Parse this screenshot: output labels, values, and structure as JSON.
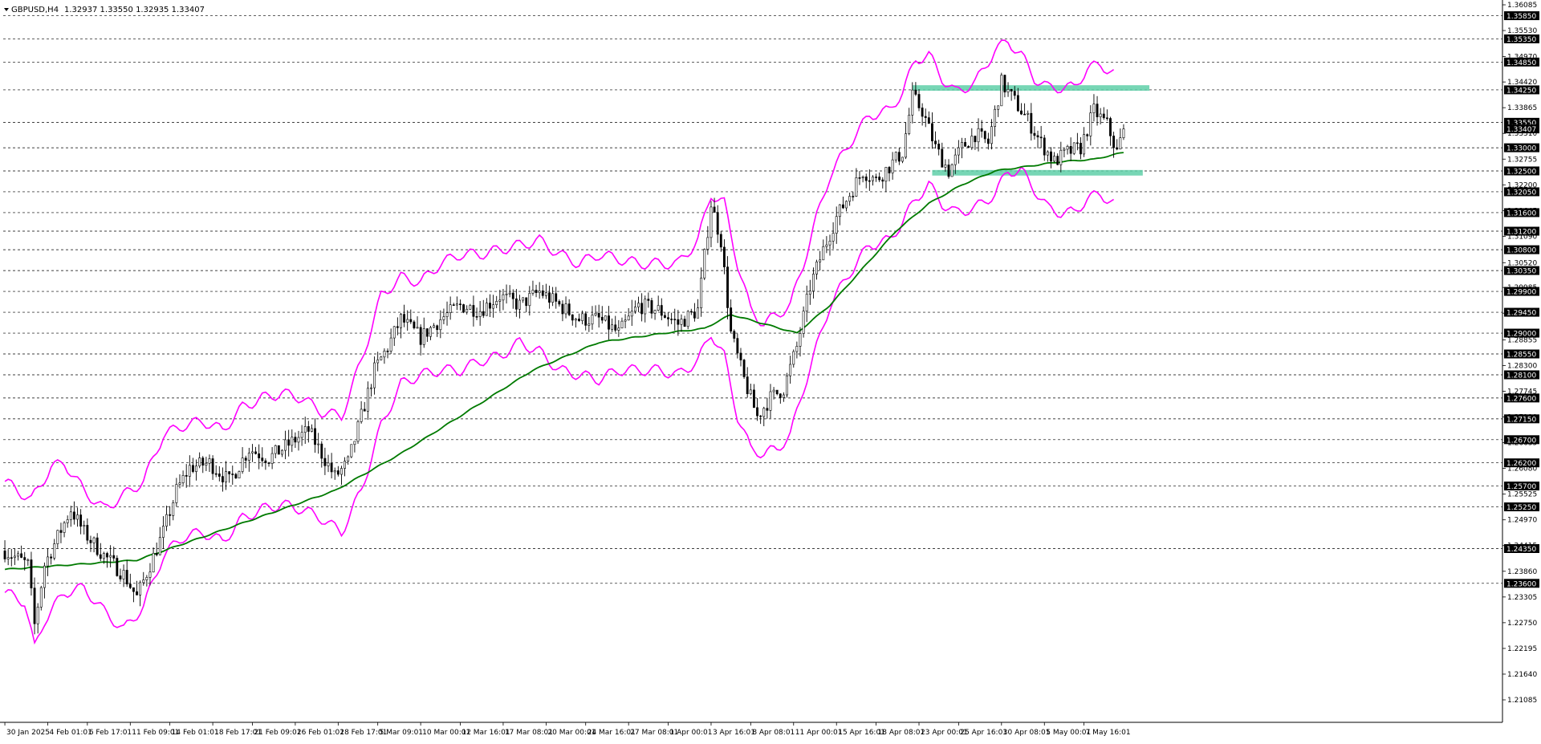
{
  "header": {
    "symbol": "GBPUSD,H4",
    "ohlc": "1.32937 1.33550 1.32935 1.33407"
  },
  "colors": {
    "background": "#ffffff",
    "candle": "#000000",
    "bollinger": "#ff00ff",
    "moving_average": "#007a00",
    "zone": "#5fcfa8",
    "label_box": "#000000"
  },
  "chart_data": {
    "type": "candlestick",
    "ylim": [
      1.206,
      1.36085
    ],
    "price_ticks": [
      "1.36085",
      "1.35530",
      "1.34970",
      "1.34420",
      "1.33865",
      "1.33310",
      "1.32755",
      "1.32200",
      "1.31645",
      "1.31090",
      "1.30520",
      "1.29985",
      "1.29430",
      "1.28855",
      "1.28300",
      "1.27745",
      "1.27190",
      "1.26635",
      "1.26080",
      "1.25525",
      "1.24970",
      "1.24415",
      "1.23860",
      "1.23305",
      "1.22750",
      "1.22195",
      "1.21640",
      "1.21085"
    ],
    "level_labels": [
      "1.35850",
      "1.35350",
      "1.34850",
      "1.34250",
      "1.33550",
      "1.33407",
      "1.33000",
      "1.32500",
      "1.32050",
      "1.31600",
      "1.31200",
      "1.30800",
      "1.30350",
      "1.29900",
      "1.29450",
      "1.29000",
      "1.28550",
      "1.28100",
      "1.27600",
      "1.27150",
      "1.26700",
      "1.26200",
      "1.25700",
      "1.25250",
      "1.24350",
      "1.23600"
    ],
    "horizontal_levels": [
      1.3585,
      1.3535,
      1.3485,
      1.3425,
      1.3355,
      1.33,
      1.325,
      1.3205,
      1.316,
      1.312,
      1.308,
      1.3035,
      1.299,
      1.2945,
      1.29,
      1.2855,
      1.281,
      1.276,
      1.2715,
      1.267,
      1.262,
      1.257,
      1.2525,
      1.2435,
      1.236
    ],
    "current_price": 1.33407,
    "time_labels": [
      "30 Jan 2025",
      "4 Feb 01:01",
      "6 Feb 17:01",
      "11 Feb 09:01",
      "14 Feb 01:01",
      "18 Feb 17:01",
      "21 Feb 09:01",
      "26 Feb 01:01",
      "28 Feb 17:01",
      "5 Mar 09:01",
      "10 Mar 00:01",
      "12 Mar 16:01",
      "17 Mar 08:01",
      "20 Mar 00:01",
      "24 Mar 16:01",
      "27 Mar 08:01",
      "1 Apr 00:01",
      "3 Apr 16:01",
      "8 Apr 08:01",
      "11 Apr 00:01",
      "15 Apr 16:01",
      "18 Apr 08:01",
      "23 Apr 00:01",
      "25 Apr 16:01",
      "30 Apr 08:01",
      "5 May 00:01",
      "7 May 16:01"
    ],
    "zones": [
      {
        "price_top": 1.3435,
        "price_bottom": 1.3423,
        "from_bar": 275,
        "to_bar": 340
      },
      {
        "price_top": 1.3252,
        "price_bottom": 1.324,
        "from_bar": 281,
        "to_bar": 338
      }
    ],
    "bar_count": 340,
    "price_path": [
      [
        0,
        1.243
      ],
      [
        7,
        1.24
      ],
      [
        9,
        1.227
      ],
      [
        12,
        1.24
      ],
      [
        20,
        1.252
      ],
      [
        24,
        1.247
      ],
      [
        30,
        1.242
      ],
      [
        36,
        1.238
      ],
      [
        40,
        1.233
      ],
      [
        44,
        1.24
      ],
      [
        48,
        1.247
      ],
      [
        52,
        1.256
      ],
      [
        56,
        1.261
      ],
      [
        62,
        1.262
      ],
      [
        68,
        1.258
      ],
      [
        74,
        1.265
      ],
      [
        80,
        1.263
      ],
      [
        86,
        1.266
      ],
      [
        92,
        1.269
      ],
      [
        96,
        1.264
      ],
      [
        100,
        1.259
      ],
      [
        104,
        1.262
      ],
      [
        108,
        1.272
      ],
      [
        112,
        1.282
      ],
      [
        116,
        1.287
      ],
      [
        120,
        1.293
      ],
      [
        126,
        1.289
      ],
      [
        132,
        1.293
      ],
      [
        138,
        1.296
      ],
      [
        144,
        1.295
      ],
      [
        150,
        1.298
      ],
      [
        156,
        1.296
      ],
      [
        162,
        1.299
      ],
      [
        168,
        1.296
      ],
      [
        174,
        1.293
      ],
      [
        180,
        1.293
      ],
      [
        186,
        1.29
      ],
      [
        192,
        1.296
      ],
      [
        198,
        1.295
      ],
      [
        204,
        1.292
      ],
      [
        210,
        1.295
      ],
      [
        214,
        1.318
      ],
      [
        217,
        1.31
      ],
      [
        220,
        1.29
      ],
      [
        224,
        1.28
      ],
      [
        228,
        1.272
      ],
      [
        232,
        1.276
      ],
      [
        236,
        1.278
      ],
      [
        240,
        1.287
      ],
      [
        244,
        1.3
      ],
      [
        248,
        1.308
      ],
      [
        252,
        1.315
      ],
      [
        256,
        1.32
      ],
      [
        260,
        1.325
      ],
      [
        264,
        1.323
      ],
      [
        268,
        1.326
      ],
      [
        272,
        1.329
      ],
      [
        275,
        1.341
      ],
      [
        278,
        1.338
      ],
      [
        282,
        1.33
      ],
      [
        286,
        1.325
      ],
      [
        290,
        1.33
      ],
      [
        294,
        1.333
      ],
      [
        298,
        1.331
      ],
      [
        302,
        1.344
      ],
      [
        306,
        1.34
      ],
      [
        310,
        1.336
      ],
      [
        314,
        1.331
      ],
      [
        318,
        1.327
      ],
      [
        322,
        1.329
      ],
      [
        326,
        1.33
      ],
      [
        330,
        1.338
      ],
      [
        334,
        1.335
      ],
      [
        337,
        1.329
      ],
      [
        339,
        1.3341
      ]
    ],
    "ma_path": [
      [
        0,
        1.239
      ],
      [
        20,
        1.24
      ],
      [
        40,
        1.241
      ],
      [
        60,
        1.246
      ],
      [
        80,
        1.251
      ],
      [
        100,
        1.256
      ],
      [
        120,
        1.264
      ],
      [
        140,
        1.273
      ],
      [
        160,
        1.282
      ],
      [
        180,
        1.288
      ],
      [
        200,
        1.29
      ],
      [
        212,
        1.291
      ],
      [
        220,
        1.294
      ],
      [
        230,
        1.292
      ],
      [
        240,
        1.29
      ],
      [
        250,
        1.296
      ],
      [
        260,
        1.304
      ],
      [
        270,
        1.312
      ],
      [
        280,
        1.318
      ],
      [
        290,
        1.322
      ],
      [
        300,
        1.325
      ],
      [
        310,
        1.326
      ],
      [
        320,
        1.327
      ],
      [
        330,
        1.3275
      ],
      [
        339,
        1.329
      ]
    ],
    "bb_upper_path": [
      [
        0,
        1.258
      ],
      [
        8,
        1.254
      ],
      [
        14,
        1.261
      ],
      [
        18,
        1.262
      ],
      [
        24,
        1.256
      ],
      [
        30,
        1.252
      ],
      [
        36,
        1.255
      ],
      [
        42,
        1.258
      ],
      [
        48,
        1.268
      ],
      [
        54,
        1.27
      ],
      [
        60,
        1.271
      ],
      [
        66,
        1.269
      ],
      [
        72,
        1.274
      ],
      [
        78,
        1.276
      ],
      [
        84,
        1.277
      ],
      [
        90,
        1.276
      ],
      [
        96,
        1.273
      ],
      [
        102,
        1.272
      ],
      [
        108,
        1.284
      ],
      [
        114,
        1.298
      ],
      [
        120,
        1.302
      ],
      [
        126,
        1.301
      ],
      [
        132,
        1.305
      ],
      [
        138,
        1.307
      ],
      [
        144,
        1.307
      ],
      [
        150,
        1.308
      ],
      [
        156,
        1.309
      ],
      [
        162,
        1.31
      ],
      [
        168,
        1.307
      ],
      [
        174,
        1.305
      ],
      [
        180,
        1.307
      ],
      [
        186,
        1.306
      ],
      [
        192,
        1.305
      ],
      [
        198,
        1.305
      ],
      [
        204,
        1.305
      ],
      [
        210,
        1.31
      ],
      [
        214,
        1.32
      ],
      [
        218,
        1.318
      ],
      [
        222,
        1.305
      ],
      [
        226,
        1.295
      ],
      [
        230,
        1.292
      ],
      [
        234,
        1.294
      ],
      [
        238,
        1.296
      ],
      [
        242,
        1.305
      ],
      [
        246,
        1.315
      ],
      [
        250,
        1.324
      ],
      [
        256,
        1.331
      ],
      [
        262,
        1.337
      ],
      [
        268,
        1.338
      ],
      [
        272,
        1.342
      ],
      [
        276,
        1.349
      ],
      [
        280,
        1.35
      ],
      [
        284,
        1.345
      ],
      [
        288,
        1.342
      ],
      [
        294,
        1.344
      ],
      [
        300,
        1.351
      ],
      [
        304,
        1.353
      ],
      [
        308,
        1.35
      ],
      [
        312,
        1.345
      ],
      [
        316,
        1.343
      ],
      [
        320,
        1.343
      ],
      [
        324,
        1.343
      ],
      [
        328,
        1.347
      ],
      [
        332,
        1.348
      ],
      [
        336,
        1.346
      ]
    ],
    "bb_lower_path": [
      [
        0,
        1.234
      ],
      [
        6,
        1.232
      ],
      [
        9,
        1.222
      ],
      [
        12,
        1.228
      ],
      [
        18,
        1.234
      ],
      [
        24,
        1.235
      ],
      [
        30,
        1.23
      ],
      [
        36,
        1.226
      ],
      [
        42,
        1.231
      ],
      [
        48,
        1.242
      ],
      [
        54,
        1.246
      ],
      [
        60,
        1.247
      ],
      [
        66,
        1.245
      ],
      [
        72,
        1.25
      ],
      [
        78,
        1.252
      ],
      [
        84,
        1.253
      ],
      [
        90,
        1.252
      ],
      [
        96,
        1.25
      ],
      [
        102,
        1.247
      ],
      [
        108,
        1.256
      ],
      [
        114,
        1.27
      ],
      [
        120,
        1.279
      ],
      [
        126,
        1.281
      ],
      [
        132,
        1.282
      ],
      [
        138,
        1.282
      ],
      [
        144,
        1.284
      ],
      [
        150,
        1.285
      ],
      [
        156,
        1.288
      ],
      [
        162,
        1.286
      ],
      [
        168,
        1.282
      ],
      [
        174,
        1.281
      ],
      [
        180,
        1.28
      ],
      [
        186,
        1.282
      ],
      [
        192,
        1.282
      ],
      [
        198,
        1.282
      ],
      [
        204,
        1.281
      ],
      [
        210,
        1.284
      ],
      [
        214,
        1.29
      ],
      [
        218,
        1.285
      ],
      [
        222,
        1.272
      ],
      [
        226,
        1.265
      ],
      [
        230,
        1.264
      ],
      [
        234,
        1.265
      ],
      [
        238,
        1.268
      ],
      [
        242,
        1.278
      ],
      [
        246,
        1.287
      ],
      [
        250,
        1.296
      ],
      [
        256,
        1.303
      ],
      [
        262,
        1.309
      ],
      [
        268,
        1.31
      ],
      [
        272,
        1.314
      ],
      [
        276,
        1.319
      ],
      [
        280,
        1.322
      ],
      [
        284,
        1.318
      ],
      [
        288,
        1.316
      ],
      [
        294,
        1.317
      ],
      [
        300,
        1.32
      ],
      [
        304,
        1.325
      ],
      [
        308,
        1.325
      ],
      [
        312,
        1.321
      ],
      [
        316,
        1.317
      ],
      [
        320,
        1.316
      ],
      [
        324,
        1.316
      ],
      [
        328,
        1.319
      ],
      [
        332,
        1.32
      ],
      [
        336,
        1.318
      ]
    ]
  }
}
